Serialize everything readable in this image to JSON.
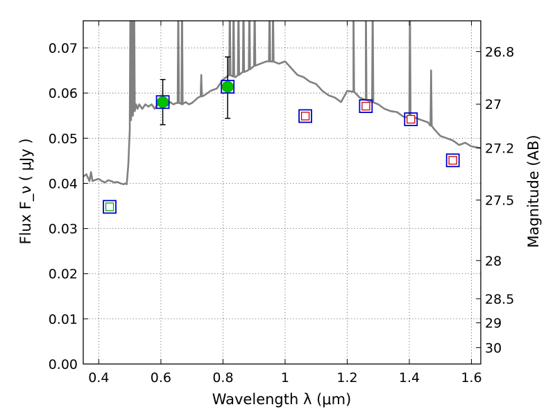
{
  "chart_data": {
    "type": "scatter",
    "title": "",
    "xlabel": "Wavelength  λ (μm)",
    "ylabel": "Flux  F_ν  ( μJy )",
    "y2label": "Magnitude (AB)",
    "xlim": [
      0.35,
      1.63
    ],
    "ylim": [
      0.0,
      0.076
    ],
    "xticks": [
      0.4,
      0.6,
      0.8,
      1.0,
      1.2,
      1.4,
      1.6
    ],
    "xtick_labels": [
      "0.4",
      "0.6",
      "0.8",
      "1",
      "1.2",
      "1.4",
      "1.6"
    ],
    "yticks": [
      0.0,
      0.01,
      0.02,
      0.03,
      0.04,
      0.05,
      0.06,
      0.07
    ],
    "ytick_labels": [
      "0.00",
      "0.01",
      "0.02",
      "0.03",
      "0.04",
      "0.05",
      "0.06",
      "0.07"
    ],
    "y2ticks": [
      {
        "label": "26.8",
        "mag": 26.8
      },
      {
        "label": "27",
        "mag": 27.0
      },
      {
        "label": "27.2",
        "mag": 27.2
      },
      {
        "label": "27.5",
        "mag": 27.5
      },
      {
        "label": "28",
        "mag": 28.0
      },
      {
        "label": "28.5",
        "mag": 28.5
      },
      {
        "label": "29",
        "mag": 29.0
      },
      {
        "label": "30",
        "mag": 30.0
      }
    ],
    "grid": true,
    "colors": {
      "sed": "#808080",
      "detection": "#00c000",
      "errorbar": "#000000",
      "model_box": "#0000cc",
      "upper_limit_box": "#cc0000",
      "blue_limit_box": "#00aa00"
    },
    "series": [
      {
        "name": "Model SED",
        "kind": "line",
        "x": [
          0.35,
          0.36,
          0.37,
          0.375,
          0.38,
          0.39,
          0.4,
          0.41,
          0.42,
          0.43,
          0.44,
          0.45,
          0.46,
          0.47,
          0.48,
          0.485,
          0.49,
          0.495,
          0.5,
          0.505,
          0.51,
          0.52,
          0.525,
          0.53,
          0.54,
          0.55,
          0.56,
          0.57,
          0.58,
          0.59,
          0.6,
          0.61,
          0.62,
          0.63,
          0.64,
          0.65,
          0.66,
          0.67,
          0.68,
          0.69,
          0.7,
          0.72,
          0.74,
          0.76,
          0.78,
          0.8,
          0.82,
          0.84,
          0.86,
          0.88,
          0.9,
          0.92,
          0.94,
          0.96,
          0.98,
          1.0,
          1.02,
          1.04,
          1.06,
          1.08,
          1.1,
          1.12,
          1.14,
          1.16,
          1.18,
          1.2,
          1.22,
          1.24,
          1.26,
          1.28,
          1.3,
          1.32,
          1.34,
          1.36,
          1.38,
          1.4,
          1.42,
          1.44,
          1.46,
          1.48,
          1.5,
          1.52,
          1.54,
          1.56,
          1.58,
          1.6,
          1.63
        ],
        "y": [
          0.0415,
          0.042,
          0.0405,
          0.0425,
          0.0405,
          0.0408,
          0.041,
          0.0405,
          0.0402,
          0.0407,
          0.0405,
          0.0402,
          0.0403,
          0.04,
          0.0398,
          0.04,
          0.0398,
          0.044,
          0.052,
          0.057,
          0.055,
          0.0575,
          0.0565,
          0.0575,
          0.0565,
          0.0575,
          0.057,
          0.0575,
          0.0565,
          0.0575,
          0.058,
          0.0575,
          0.0572,
          0.058,
          0.0575,
          0.0578,
          0.0578,
          0.0575,
          0.058,
          0.0575,
          0.0578,
          0.059,
          0.0595,
          0.0605,
          0.061,
          0.063,
          0.064,
          0.0635,
          0.0645,
          0.065,
          0.066,
          0.0665,
          0.067,
          0.067,
          0.0665,
          0.067,
          0.0655,
          0.064,
          0.0635,
          0.0625,
          0.062,
          0.0605,
          0.0595,
          0.059,
          0.058,
          0.0605,
          0.0603,
          0.059,
          0.0585,
          0.058,
          0.0575,
          0.0565,
          0.056,
          0.0558,
          0.0548,
          0.0545,
          0.0545,
          0.054,
          0.0535,
          0.052,
          0.0505,
          0.05,
          0.0495,
          0.0485,
          0.049,
          0.0482,
          0.0478
        ]
      },
      {
        "name": "Emission lines",
        "kind": "spikes",
        "x": [
          0.502,
          0.508,
          0.514,
          0.656,
          0.668,
          0.73,
          0.822,
          0.834,
          0.85,
          0.866,
          0.885,
          0.902,
          0.95,
          0.961,
          1.22,
          1.26,
          1.282,
          1.402,
          1.47
        ],
        "top": [
          0.08,
          0.08,
          0.08,
          0.08,
          0.08,
          0.064,
          0.08,
          0.08,
          0.08,
          0.08,
          0.08,
          0.08,
          0.08,
          0.08,
          0.08,
          0.08,
          0.08,
          0.08,
          0.065
        ]
      },
      {
        "name": "Detections",
        "kind": "points_err",
        "x": [
          0.606,
          0.815
        ],
        "y": [
          0.058,
          0.0614
        ],
        "err_low": [
          0.005,
          0.007
        ],
        "err_high": [
          0.005,
          0.0066
        ]
      },
      {
        "name": "Model photometry",
        "kind": "boxes",
        "x": [
          0.606,
          0.815,
          0.435,
          1.065,
          1.26,
          1.405,
          1.54
        ],
        "y": [
          0.058,
          0.0614,
          0.0348,
          0.0549,
          0.0571,
          0.0542,
          0.0451
        ],
        "inner": [
          "none",
          "none",
          "green",
          "red",
          "red",
          "red",
          "red"
        ]
      }
    ]
  }
}
